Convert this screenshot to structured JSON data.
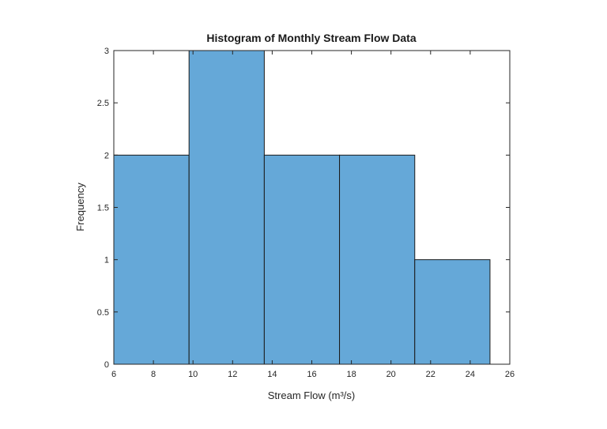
{
  "chart_data": {
    "type": "bar",
    "title": "Histogram of Monthly Stream Flow Data",
    "xlabel": "Stream Flow (m³/s)",
    "ylabel": "Frequency",
    "xlim": [
      6,
      26
    ],
    "ylim": [
      0,
      3
    ],
    "xticks": [
      "6",
      "8",
      "10",
      "12",
      "14",
      "16",
      "18",
      "20",
      "22",
      "24",
      "26"
    ],
    "yticks": [
      "0",
      "0.5",
      "1",
      "1.5",
      "2",
      "2.5",
      "3"
    ],
    "bins": [
      {
        "start": 6.0,
        "end": 9.8,
        "count": 2
      },
      {
        "start": 9.8,
        "end": 13.6,
        "count": 3
      },
      {
        "start": 13.6,
        "end": 17.4,
        "count": 2
      },
      {
        "start": 17.4,
        "end": 21.2,
        "count": 2
      },
      {
        "start": 21.2,
        "end": 25.0,
        "count": 1
      }
    ],
    "bar_color": "#65a8d8",
    "edge_color": "#1a1a1a",
    "grid": false
  }
}
